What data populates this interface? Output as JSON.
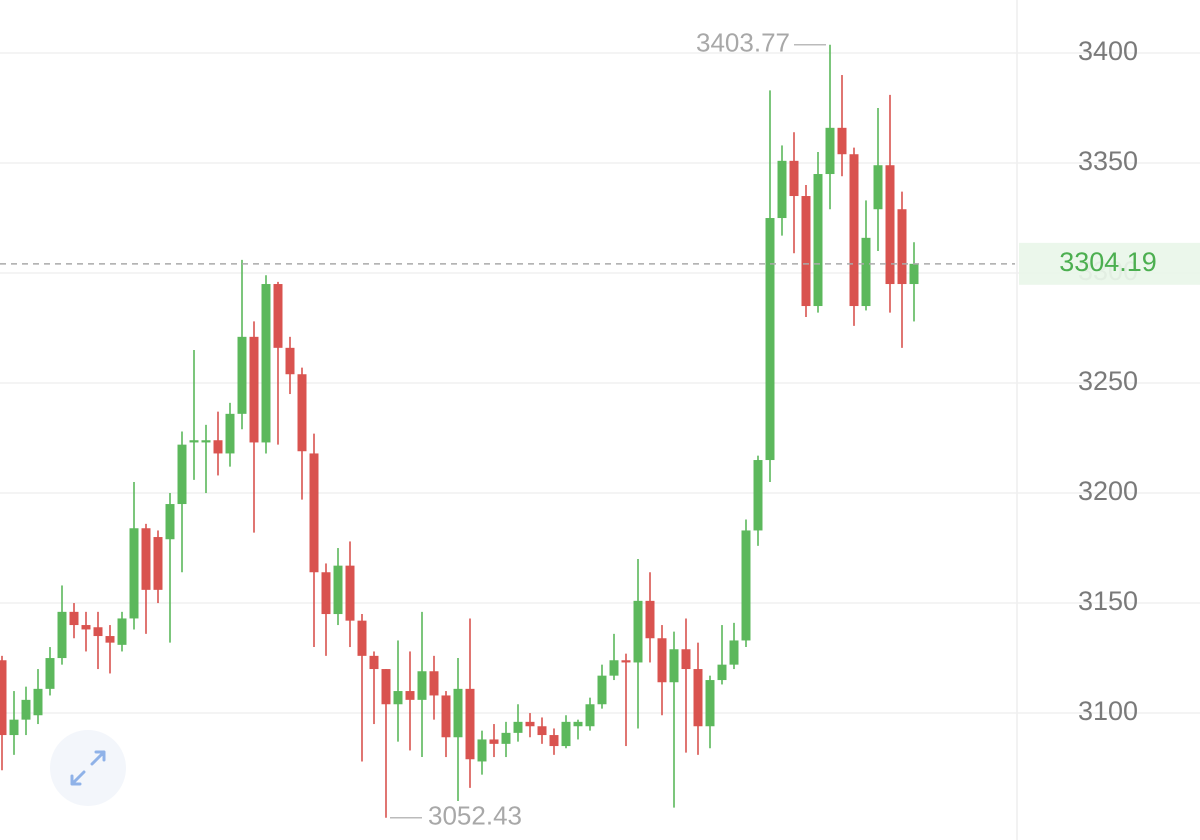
{
  "chart_data": {
    "type": "candlestick",
    "up_color": "#5cb85c",
    "down_color": "#d9534f",
    "ylim": [
      3042.3,
      3424.1
    ],
    "yticks": [
      3100,
      3150,
      3200,
      3250,
      3300,
      3350,
      3400
    ],
    "grid": true,
    "open": [
      3124,
      3090,
      3097,
      3099,
      3111,
      3125,
      3146,
      3140,
      3139,
      3135,
      3131,
      3143,
      3184,
      3180,
      3179,
      3195,
      3223,
      3223,
      3224,
      3218,
      3236,
      3271,
      3223,
      3295,
      3266,
      3254,
      3218,
      3164,
      3145,
      3167,
      3142,
      3126,
      3120,
      3104,
      3110,
      3106,
      3119,
      3108,
      3089,
      3111,
      3078,
      3088,
      3086,
      3091,
      3096,
      3094,
      3090,
      3085,
      3094,
      3094,
      3104,
      3117,
      3124,
      3123,
      3151,
      3134,
      3114,
      3129,
      3120,
      3094,
      3115,
      3122,
      3133,
      3183,
      3215,
      3325,
      3351,
      3335,
      3285,
      3345,
      3366,
      3354,
      3285,
      3329,
      3349,
      3329,
      3295
    ],
    "high": [
      3126,
      3110,
      3112,
      3120,
      3130,
      3158,
      3150,
      3146,
      3146,
      3140,
      3146,
      3205,
      3186,
      3183,
      3200,
      3228,
      3265,
      3231,
      3237,
      3241,
      3306,
      3278,
      3299,
      3296,
      3271,
      3257,
      3227,
      3168,
      3175,
      3178,
      3145,
      3128,
      3120,
      3133,
      3128,
      3146,
      3126,
      3110,
      3125,
      3143,
      3092,
      3095,
      3096,
      3104,
      3100,
      3098,
      3093,
      3099,
      3097,
      3107,
      3122,
      3136,
      3127,
      3170,
      3164,
      3140,
      3137,
      3143,
      3132,
      3117,
      3140,
      3141,
      3188,
      3217,
      3383,
      3358,
      3364,
      3340,
      3355,
      3403.77,
      3390,
      3357,
      3333,
      3375,
      3381,
      3337,
      3314
    ],
    "low": [
      3074,
      3081,
      3090,
      3095,
      3108,
      3122,
      3134,
      3128,
      3120,
      3118,
      3128,
      3138,
      3136,
      3150,
      3132,
      3164,
      3206,
      3200,
      3208,
      3212,
      3229,
      3182,
      3218,
      3222,
      3245,
      3197,
      3130,
      3126,
      3140,
      3130,
      3078,
      3095,
      3052.43,
      3087,
      3083,
      3080,
      3097,
      3080,
      3060,
      3066,
      3072,
      3080,
      3080,
      3087,
      3089,
      3086,
      3081,
      3084,
      3088,
      3092,
      3102,
      3115,
      3085,
      3093,
      3123,
      3099,
      3057,
      3082,
      3081,
      3084,
      3113,
      3120,
      3130,
      3176,
      3205,
      3317,
      3309,
      3280,
      3282,
      3329,
      3344,
      3276,
      3283,
      3310,
      3282,
      3266,
      3278
    ],
    "close": [
      3090,
      3097,
      3106,
      3111,
      3125,
      3146,
      3140,
      3138,
      3135,
      3132,
      3143,
      3184,
      3156,
      3156,
      3195,
      3222,
      3224,
      3224,
      3218,
      3236,
      3271,
      3223,
      3295,
      3266,
      3254,
      3219,
      3164,
      3145,
      3167,
      3142,
      3126,
      3120,
      3104,
      3110,
      3106,
      3119,
      3108,
      3089,
      3111,
      3079,
      3088,
      3086,
      3091,
      3096,
      3094,
      3090,
      3085,
      3096,
      3096,
      3104,
      3117,
      3124,
      3123,
      3151,
      3134,
      3114,
      3129,
      3120,
      3094,
      3115,
      3122,
      3133,
      3183,
      3215,
      3325,
      3351,
      3335,
      3285,
      3345,
      3366,
      3354,
      3285,
      3316,
      3349,
      3295,
      3295,
      3304.19
    ]
  }
}
